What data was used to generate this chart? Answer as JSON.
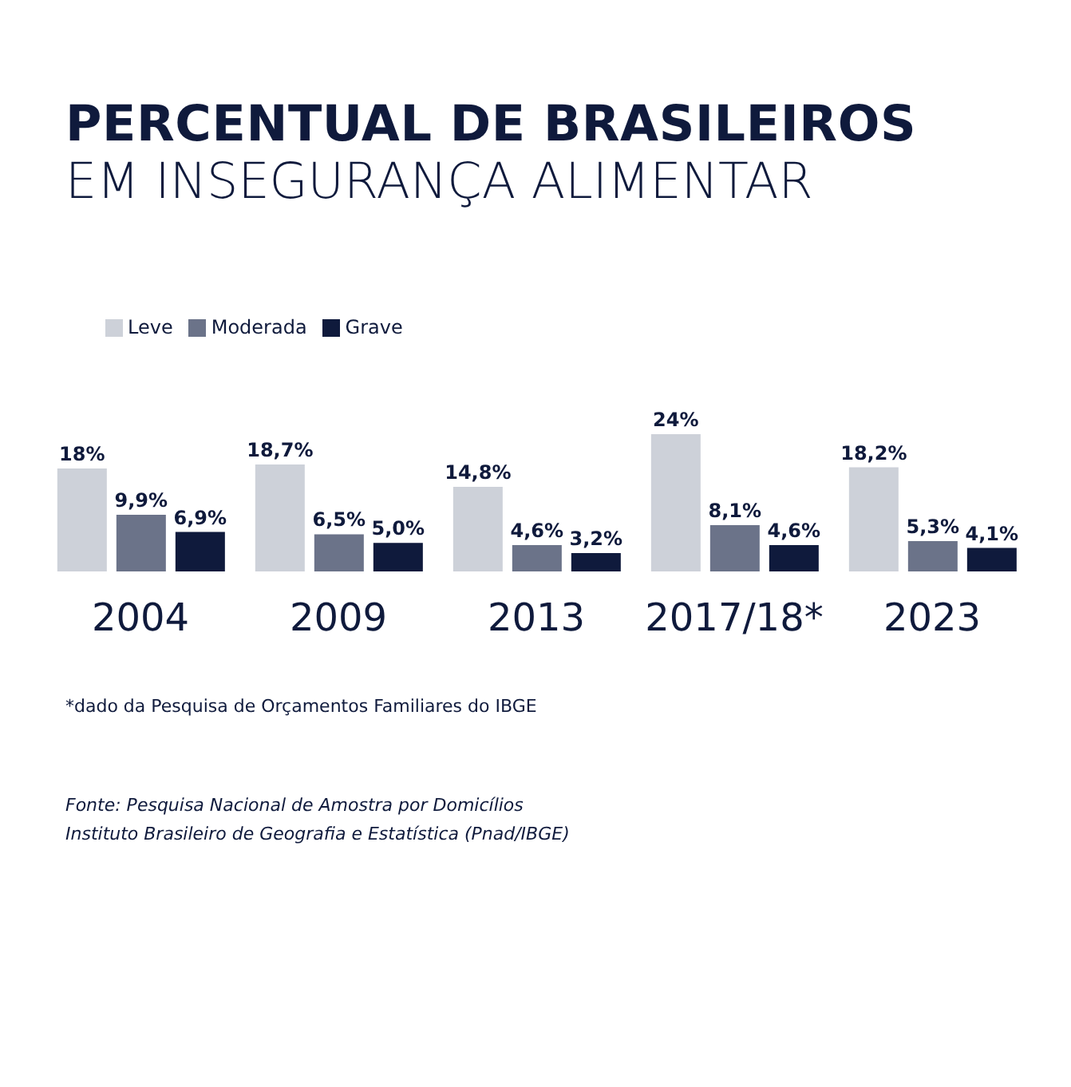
{
  "chart_data": {
    "type": "bar",
    "title": "PERCENTUAL DE BRASILEIROS",
    "subtitle": "EM INSEGURANÇA ALIMENTAR",
    "categories": [
      "2004",
      "2009",
      "2013",
      "2017/18*",
      "2023"
    ],
    "series": [
      {
        "name": "Leve",
        "color": "#cdd1d9",
        "values": [
          18,
          18.7,
          14.8,
          24,
          18.2
        ],
        "value_labels": [
          "18%",
          "18,7%",
          "14,8%",
          "24%",
          "18,2%"
        ]
      },
      {
        "name": "Moderada",
        "color": "#6b7389",
        "values": [
          9.9,
          6.5,
          4.6,
          8.1,
          5.3
        ],
        "value_labels": [
          "9,9%",
          "6,5%",
          "4,6%",
          "8,1%",
          "5,3%"
        ]
      },
      {
        "name": "Grave",
        "color": "#0f1a3c",
        "values": [
          6.9,
          5.0,
          3.2,
          4.6,
          4.1
        ],
        "value_labels": [
          "6,9%",
          "5,0%",
          "3,2%",
          "4,6%",
          "4,1%"
        ]
      }
    ],
    "legend": "top left",
    "grid": false,
    "annotations": [
      "*dado da Pesquisa de Orçamentos Familiares do IBGE",
      "Fonte: Pesquisa Nacional de Amostra por Domicílios",
      "Instituto Brasileiro de Geografia e Estatística (Pnad/IBGE)"
    ]
  }
}
